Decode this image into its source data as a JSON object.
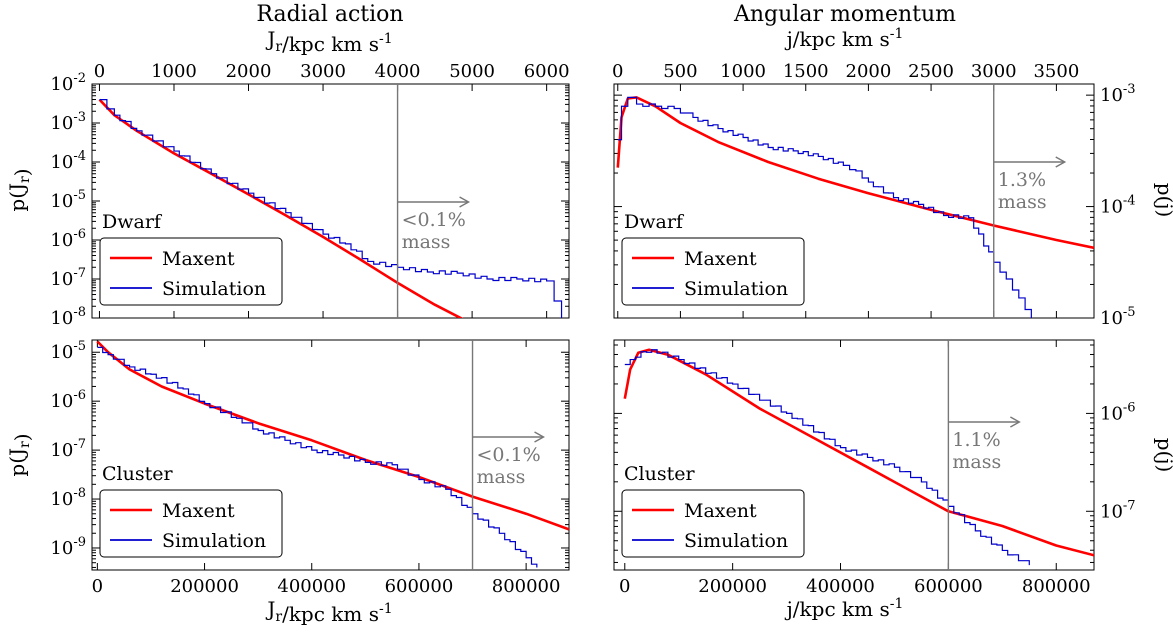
{
  "figure": {
    "left_title": "Radial action",
    "right_title": "Angular momentum",
    "left_top_xlabel": "J_r/kpc km s^-1",
    "right_top_xlabel": "j/kpc km s^-1",
    "left_bottom_xlabel": "J_r/kpc km s^-1",
    "right_bottom_xlabel": "j/kpc km s^-1",
    "left_ylabel": "p(J_r)",
    "right_ylabel": "p(j)"
  },
  "colors": {
    "maxent": "#ff0000",
    "simulation": "#0000cc",
    "cutoff": "#777777"
  },
  "chart_data": [
    {
      "id": "dwarf-radial",
      "type": "line",
      "panel_label": "Dwarf",
      "xlabel": "J_r/kpc km s^-1",
      "ylabel": "p(J_r)",
      "xlim": [
        -100,
        6300
      ],
      "ylim_log10": [
        -8,
        -2
      ],
      "y_scale": "log",
      "x_ticks": [
        "0",
        "1000",
        "2000",
        "3000",
        "4000",
        "5000",
        "6000"
      ],
      "x_tick_values": [
        0,
        1000,
        2000,
        3000,
        4000,
        5000,
        6000
      ],
      "y_ticks": [
        "10^-2",
        "10^-3",
        "10^-4",
        "10^-5",
        "10^-6",
        "10^-7",
        "10^-8"
      ],
      "y_tick_values": [
        -2,
        -3,
        -4,
        -5,
        -6,
        -7,
        -8
      ],
      "legend": [
        "Maxent",
        "Simulation"
      ],
      "legend_position": "lower-left",
      "cutoff_x": 4000,
      "annotation": [
        "<0.1%",
        "mass"
      ],
      "series": [
        {
          "name": "Maxent",
          "x": [
            0,
            200,
            500,
            1000,
            1500,
            2000,
            2500,
            3000,
            3500,
            4000,
            4500,
            5000
          ],
          "log10_y": [
            -2.4,
            -2.8,
            -3.2,
            -3.78,
            -4.3,
            -4.83,
            -5.37,
            -5.92,
            -6.5,
            -7.1,
            -7.66,
            -8.15
          ]
        },
        {
          "name": "Simulation",
          "x": [
            0,
            200,
            500,
            1000,
            1500,
            2000,
            2500,
            3000,
            3300,
            3600,
            4000,
            4400,
            4800,
            5200,
            5600,
            6000,
            6200
          ],
          "log10_y": [
            -2.4,
            -2.8,
            -3.2,
            -3.72,
            -4.3,
            -4.8,
            -5.3,
            -5.85,
            -6.1,
            -6.55,
            -6.7,
            -6.82,
            -6.85,
            -7.0,
            -7.0,
            -7.05,
            -8.0
          ]
        }
      ]
    },
    {
      "id": "dwarf-angular",
      "type": "line",
      "panel_label": "Dwarf",
      "xlabel": "j/kpc km s^-1",
      "ylabel": "p(j)",
      "xlim": [
        -30,
        3800
      ],
      "ylim_log10": [
        -5,
        -2.9
      ],
      "y_scale": "log",
      "x_ticks": [
        "0",
        "500",
        "1000",
        "1500",
        "2000",
        "2500",
        "3000",
        "3500"
      ],
      "x_tick_values": [
        0,
        500,
        1000,
        1500,
        2000,
        2500,
        3000,
        3500
      ],
      "y_ticks": [
        "10^-3",
        "10^-4",
        "10^-5"
      ],
      "y_tick_values": [
        -3,
        -4,
        -5
      ],
      "legend": [
        "Maxent",
        "Simulation"
      ],
      "legend_position": "lower-left",
      "cutoff_x": 3000,
      "annotation": [
        "1.3%",
        "mass"
      ],
      "series": [
        {
          "name": "Maxent",
          "x": [
            0,
            30,
            80,
            150,
            300,
            500,
            800,
            1200,
            1600,
            2000,
            2500,
            3000,
            3500,
            3800
          ],
          "log10_y": [
            -3.65,
            -3.2,
            -3.03,
            -3.02,
            -3.1,
            -3.25,
            -3.42,
            -3.6,
            -3.75,
            -3.88,
            -4.03,
            -4.17,
            -4.3,
            -4.37
          ]
        },
        {
          "name": "Simulation",
          "x": [
            0,
            30,
            80,
            150,
            300,
            450,
            600,
            800,
            1000,
            1200,
            1400,
            1600,
            1800,
            1900,
            2000,
            2200,
            2400,
            2600,
            2800,
            3000,
            3100,
            3200,
            3300
          ],
          "log10_y": [
            -3.4,
            -3.1,
            -3.02,
            -3.08,
            -3.1,
            -3.12,
            -3.2,
            -3.3,
            -3.38,
            -3.47,
            -3.5,
            -3.55,
            -3.63,
            -3.68,
            -3.78,
            -3.92,
            -3.98,
            -4.08,
            -4.1,
            -4.5,
            -4.65,
            -4.82,
            -5.0
          ]
        }
      ]
    },
    {
      "id": "cluster-radial",
      "type": "line",
      "panel_label": "Cluster",
      "xlabel": "J_r/kpc km s^-1",
      "ylabel": "p(J_r)",
      "xlim": [
        -10000,
        880000
      ],
      "ylim_log10": [
        -9.45,
        -4.75
      ],
      "y_scale": "log",
      "x_ticks": [
        "0",
        "200000",
        "400000",
        "600000",
        "800000"
      ],
      "x_tick_values": [
        0,
        200000,
        400000,
        600000,
        800000
      ],
      "y_ticks": [
        "10^-5",
        "10^-6",
        "10^-7",
        "10^-8",
        "10^-9"
      ],
      "y_tick_values": [
        -5,
        -6,
        -7,
        -8,
        -9
      ],
      "legend": [
        "Maxent",
        "Simulation"
      ],
      "legend_position": "lower-left",
      "cutoff_x": 700000,
      "annotation": [
        "<0.1%",
        "mass"
      ],
      "series": [
        {
          "name": "Maxent",
          "x": [
            0,
            20000,
            60000,
            120000,
            200000,
            300000,
            400000,
            500000,
            600000,
            700000,
            800000,
            880000
          ],
          "log10_y": [
            -4.78,
            -5.0,
            -5.35,
            -5.7,
            -6.05,
            -6.45,
            -6.8,
            -7.2,
            -7.55,
            -7.95,
            -8.3,
            -8.62
          ]
        },
        {
          "name": "Simulation",
          "x": [
            0,
            20000,
            60000,
            100000,
            160000,
            200000,
            260000,
            300000,
            350000,
            400000,
            450000,
            500000,
            550000,
            600000,
            650000,
            700000,
            750000,
            800000,
            820000
          ],
          "log10_y": [
            -4.9,
            -5.05,
            -5.3,
            -5.45,
            -5.75,
            -6.05,
            -6.35,
            -6.6,
            -6.8,
            -7.0,
            -7.1,
            -7.25,
            -7.3,
            -7.6,
            -7.8,
            -8.3,
            -8.7,
            -9.2,
            -9.4
          ]
        }
      ]
    },
    {
      "id": "cluster-angular",
      "type": "line",
      "panel_label": "Cluster",
      "xlabel": "j/kpc km s^-1",
      "ylabel": "p(j)",
      "xlim": [
        -20000,
        870000
      ],
      "ylim_log10": [
        -7.6,
        -5.25
      ],
      "y_scale": "log",
      "x_ticks": [
        "0",
        "200000",
        "400000",
        "600000",
        "800000"
      ],
      "x_tick_values": [
        0,
        200000,
        400000,
        600000,
        800000
      ],
      "y_ticks": [
        "10^-6",
        "10^-7"
      ],
      "y_tick_values": [
        -6,
        -7
      ],
      "legend": [
        "Maxent",
        "Simulation"
      ],
      "legend_position": "lower-left",
      "cutoff_x": 600000,
      "annotation": [
        "1.1%",
        "mass"
      ],
      "series": [
        {
          "name": "Maxent",
          "x": [
            0,
            10000,
            25000,
            45000,
            80000,
            150000,
            250000,
            350000,
            450000,
            550000,
            600000,
            700000,
            800000,
            870000
          ],
          "log10_y": [
            -5.85,
            -5.55,
            -5.38,
            -5.35,
            -5.4,
            -5.6,
            -5.95,
            -6.25,
            -6.55,
            -6.85,
            -7.0,
            -7.15,
            -7.35,
            -7.45
          ]
        },
        {
          "name": "Simulation",
          "x": [
            0,
            10000,
            30000,
            50000,
            100000,
            200000,
            300000,
            400000,
            450000,
            500000,
            550000,
            600000,
            650000,
            700000,
            750000
          ],
          "log10_y": [
            -5.5,
            -5.45,
            -5.37,
            -5.35,
            -5.45,
            -5.7,
            -6.0,
            -6.35,
            -6.45,
            -6.55,
            -6.7,
            -6.95,
            -7.2,
            -7.4,
            -7.55
          ]
        }
      ]
    }
  ]
}
